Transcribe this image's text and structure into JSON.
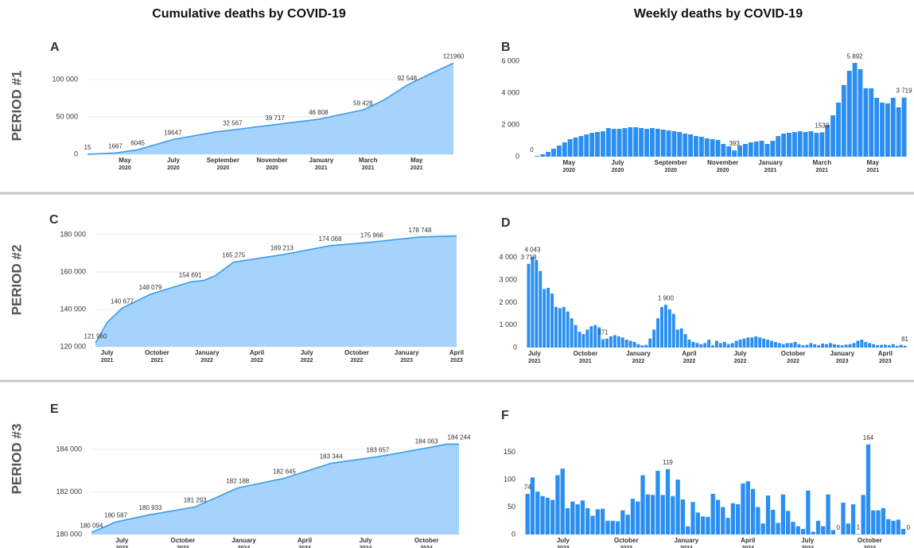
{
  "column_titles": [
    "Cumulative deaths by COVID-19",
    "Weekly deaths by COVID-19"
  ],
  "row_labels": [
    "PERIOD #1",
    "PERIOD #2",
    "PERIOD #3"
  ],
  "chart_data": [
    {
      "type": "area",
      "panel": "A",
      "color": "#a5d3fb",
      "line_color": "#3a9bf0",
      "grid": true,
      "x": [
        2,
        7,
        11,
        17.3,
        25,
        28,
        35.6,
        43.4,
        51.4,
        55,
        59.3,
        63,
        67.6
      ],
      "values": [
        15,
        1667,
        6045,
        19647,
        30000,
        32567,
        39717,
        46808,
        59428,
        72000,
        92548,
        106000,
        121960
      ],
      "value_labels": [
        "15",
        "1667",
        "6045",
        "19647",
        null,
        "32 567",
        "39 717",
        "46 808",
        "59 428",
        null,
        "92 548",
        null,
        "121960"
      ],
      "xlim": [
        2,
        67.6
      ],
      "xticks": [
        8.7,
        17.4,
        26.3,
        35.1,
        43.9,
        52.3,
        61
      ],
      "xtick_labels": [
        [
          "May",
          "2020"
        ],
        [
          "July",
          "2020"
        ],
        [
          "September",
          "2020"
        ],
        [
          "November",
          "2020"
        ],
        [
          "January",
          "2021"
        ],
        [
          "March",
          "2021"
        ],
        [
          "May",
          "2021"
        ]
      ],
      "ylim": [
        0,
        123000
      ],
      "yticks": [
        0,
        {
          "value": 50000,
          "label": "50 000"
        },
        {
          "value": 100000,
          "label": "100 000"
        }
      ]
    },
    {
      "type": "bar",
      "panel": "B",
      "color": "#2a8ff0",
      "grid": false,
      "values": [
        0,
        50,
        150,
        300,
        500,
        700,
        900,
        1100,
        1200,
        1300,
        1400,
        1500,
        1550,
        1600,
        1800,
        1750,
        1750,
        1800,
        1850,
        1850,
        1800,
        1750,
        1800,
        1750,
        1700,
        1650,
        1600,
        1550,
        1450,
        1400,
        1300,
        1250,
        1150,
        1100,
        1050,
        800,
        650,
        393,
        700,
        800,
        900,
        950,
        1000,
        800,
        1000,
        1300,
        1450,
        1500,
        1550,
        1600,
        1550,
        1600,
        1500,
        1533,
        2000,
        2600,
        3400,
        4500,
        5400,
        5892,
        5500,
        4300,
        4300,
        3700,
        3400,
        3350,
        3700,
        3100,
        3719
      ],
      "value_labels": [
        "0",
        null,
        null,
        null,
        null,
        null,
        null,
        null,
        null,
        null,
        null,
        null,
        null,
        null,
        null,
        null,
        null,
        null,
        null,
        null,
        null,
        null,
        null,
        null,
        null,
        null,
        null,
        null,
        null,
        null,
        null,
        null,
        null,
        null,
        null,
        null,
        null,
        "393",
        null,
        null,
        null,
        null,
        null,
        null,
        null,
        null,
        null,
        null,
        null,
        null,
        null,
        null,
        null,
        "1533",
        null,
        null,
        null,
        null,
        null,
        "5 892",
        null,
        null,
        null,
        null,
        null,
        null,
        null,
        null,
        "3 719"
      ],
      "xticks": [
        6.8,
        15.7,
        25.4,
        34.9,
        43.6,
        53,
        62.3
      ],
      "xtick_labels": [
        [
          "May",
          "2020"
        ],
        [
          "July",
          "2020"
        ],
        [
          "September",
          "2020"
        ],
        [
          "November",
          "2020"
        ],
        [
          "January",
          "2021"
        ],
        [
          "March",
          "2021"
        ],
        [
          "May",
          "2021"
        ]
      ],
      "ylim": [
        0,
        6400
      ],
      "yticks": [
        0,
        {
          "value": 2000,
          "label": "2 000"
        },
        {
          "value": 4000,
          "label": "4 000"
        },
        {
          "value": 6000,
          "label": "6 000"
        }
      ]
    },
    {
      "type": "area",
      "panel": "C",
      "color": "#a5d3fb",
      "line_color": "#3a9bf0",
      "grid": true,
      "x": [
        -0.7,
        0,
        0.9,
        2.6,
        5,
        5.8,
        6.5,
        7.6,
        10.5,
        13.4,
        15.9,
        18.8,
        21
      ],
      "values": [
        121960,
        133000,
        140677,
        148079,
        154691,
        155500,
        158000,
        165275,
        169213,
        174068,
        175966,
        178748,
        179300
      ],
      "value_labels": [
        "121 960",
        null,
        "140 677",
        "148 079",
        "154 691",
        null,
        null,
        "165 275",
        "169 213",
        "174 068",
        "175 966",
        "178 748",
        null
      ],
      "xlim": [
        -0.7,
        21
      ],
      "xticks": [
        0,
        3,
        6,
        9,
        12,
        15,
        18,
        21
      ],
      "xtick_labels": [
        [
          "July",
          "2021"
        ],
        [
          "October",
          "2021"
        ],
        [
          "January",
          "2022"
        ],
        [
          "April",
          "2022"
        ],
        [
          "July",
          "2022"
        ],
        [
          "October",
          "2022"
        ],
        [
          "January",
          "2023"
        ],
        [
          "April",
          "2023"
        ]
      ],
      "ylim": [
        120000,
        180000
      ],
      "yticks": [
        {
          "value": 120000,
          "label": "120 000"
        },
        {
          "value": 140000,
          "label": "140 000"
        },
        {
          "value": 160000,
          "label": "160 000"
        },
        {
          "value": 180000,
          "label": "180 000"
        }
      ]
    },
    {
      "type": "bar",
      "panel": "D",
      "color": "#2a8ff0",
      "grid": false,
      "values": [
        3719,
        4043,
        3900,
        3400,
        2600,
        2650,
        2400,
        1800,
        1750,
        1800,
        1600,
        1300,
        1000,
        700,
        600,
        800,
        950,
        1000,
        900,
        371,
        400,
        500,
        550,
        500,
        450,
        350,
        300,
        250,
        150,
        100,
        120,
        400,
        800,
        1300,
        1800,
        1900,
        1700,
        1500,
        800,
        850,
        600,
        350,
        250,
        200,
        150,
        200,
        350,
        100,
        300,
        200,
        250,
        150,
        200,
        300,
        350,
        400,
        450,
        450,
        500,
        450,
        400,
        350,
        300,
        250,
        200,
        150,
        200,
        200,
        250,
        150,
        100,
        120,
        200,
        150,
        100,
        180,
        150,
        200,
        150,
        120,
        100,
        130,
        150,
        200,
        300,
        350,
        250,
        200,
        150,
        100,
        120,
        130,
        100,
        150,
        80,
        120,
        81
      ],
      "value_labels": [
        "3 719",
        "4 043",
        null,
        null,
        null,
        null,
        null,
        null,
        null,
        null,
        null,
        null,
        null,
        null,
        null,
        null,
        null,
        null,
        null,
        "371",
        null,
        null,
        null,
        null,
        null,
        null,
        null,
        null,
        null,
        null,
        null,
        null,
        null,
        null,
        null,
        "1 900",
        null,
        null,
        null,
        null,
        null,
        null,
        null,
        null,
        null,
        null,
        null,
        null,
        null,
        null,
        null,
        null,
        null,
        null,
        null,
        null,
        null,
        null,
        null,
        null,
        null,
        null,
        null,
        null,
        null,
        null,
        null,
        null,
        null,
        null,
        null,
        null,
        null,
        null,
        null,
        null,
        null,
        null,
        null,
        null,
        null,
        null,
        null,
        null,
        null,
        null,
        null,
        null,
        null,
        null,
        null,
        null,
        null,
        null,
        null,
        null,
        "81"
      ],
      "xticks": [
        1.5,
        14.5,
        28,
        41,
        54,
        67.5,
        80,
        91
      ],
      "xtick_labels": [
        [
          "July",
          "2021"
        ],
        [
          "October",
          "2021"
        ],
        [
          "January",
          "2022"
        ],
        [
          "April",
          "2022"
        ],
        [
          "July",
          "2022"
        ],
        [
          "October",
          "2022"
        ],
        [
          "January",
          "2023"
        ],
        [
          "April",
          "2023"
        ]
      ],
      "ylim": [
        0,
        4300
      ],
      "yticks": [
        0,
        {
          "value": 1000,
          "label": "1 000"
        },
        {
          "value": 2000,
          "label": "2 000"
        },
        {
          "value": 3000,
          "label": "3 000"
        },
        {
          "value": 4000,
          "label": "4 000"
        }
      ]
    },
    {
      "type": "area",
      "panel": "E",
      "color": "#a5d3fb",
      "line_color": "#3a9bf0",
      "grid": true,
      "x": [
        -1.5,
        -0.3,
        1.4,
        3.6,
        5.7,
        8,
        10.3,
        12.6,
        15,
        16,
        16.6
      ],
      "values": [
        180094,
        180587,
        180933,
        181293,
        182188,
        182645,
        183344,
        183657,
        184063,
        184244,
        184244
      ],
      "value_labels": [
        "180 094",
        "180 587",
        "180 933",
        "181 293",
        "182 188",
        "182 645",
        "183 344",
        "183 657",
        "184 063",
        null,
        "184 244"
      ],
      "xlim": [
        -1.5,
        16.6
      ],
      "xticks": [
        0,
        3,
        6,
        9,
        12,
        15
      ],
      "xtick_labels": [
        [
          "July",
          "2023"
        ],
        [
          "October",
          "2023"
        ],
        [
          "January",
          "2024"
        ],
        [
          "April",
          "2024"
        ],
        [
          "July",
          "2024"
        ],
        [
          "October",
          "2024"
        ]
      ],
      "ylim": [
        180000,
        184400
      ],
      "yticks": [
        {
          "value": 180000,
          "label": "180 000"
        },
        {
          "value": 182000,
          "label": "182 000"
        },
        {
          "value": 184000,
          "label": "184 000"
        }
      ]
    },
    {
      "type": "bar",
      "panel": "F",
      "color": "#2a8ff0",
      "grid": false,
      "values": [
        74,
        104,
        78,
        70,
        67,
        63,
        108,
        120,
        48,
        60,
        55,
        62,
        48,
        34,
        46,
        47,
        25,
        25,
        24,
        44,
        36,
        65,
        60,
        108,
        73,
        72,
        116,
        72,
        119,
        70,
        100,
        64,
        15,
        59,
        40,
        33,
        32,
        74,
        63,
        50,
        30,
        57,
        55,
        93,
        97,
        83,
        50,
        20,
        71,
        45,
        21,
        73,
        43,
        23,
        15,
        10,
        80,
        5,
        25,
        15,
        73,
        8,
        0,
        58,
        20,
        55,
        1,
        72,
        164,
        44,
        44,
        48,
        28,
        25,
        27,
        10,
        0
      ],
      "value_labels": [
        "74",
        null,
        null,
        null,
        null,
        null,
        null,
        null,
        null,
        null,
        null,
        null,
        null,
        null,
        null,
        null,
        null,
        null,
        null,
        null,
        null,
        null,
        null,
        null,
        null,
        null,
        null,
        null,
        "119",
        null,
        null,
        null,
        null,
        null,
        null,
        null,
        null,
        null,
        null,
        null,
        null,
        null,
        null,
        null,
        null,
        null,
        null,
        null,
        null,
        null,
        null,
        null,
        null,
        null,
        null,
        null,
        null,
        null,
        null,
        null,
        null,
        null,
        "0",
        null,
        null,
        null,
        "1",
        null,
        "164",
        null,
        null,
        null,
        null,
        null,
        null,
        null,
        "0"
      ],
      "xticks": [
        7.1,
        19.7,
        31.7,
        44,
        55.9,
        68.3
      ],
      "xtick_labels": [
        [
          "July",
          "2023"
        ],
        [
          "October",
          "2023"
        ],
        [
          "January",
          "2024"
        ],
        [
          "April",
          "2024"
        ],
        [
          "July",
          "2024"
        ],
        [
          "October",
          "2024"
        ]
      ],
      "ylim": [
        0,
        170
      ],
      "yticks": [
        0,
        50,
        100,
        150
      ]
    }
  ]
}
